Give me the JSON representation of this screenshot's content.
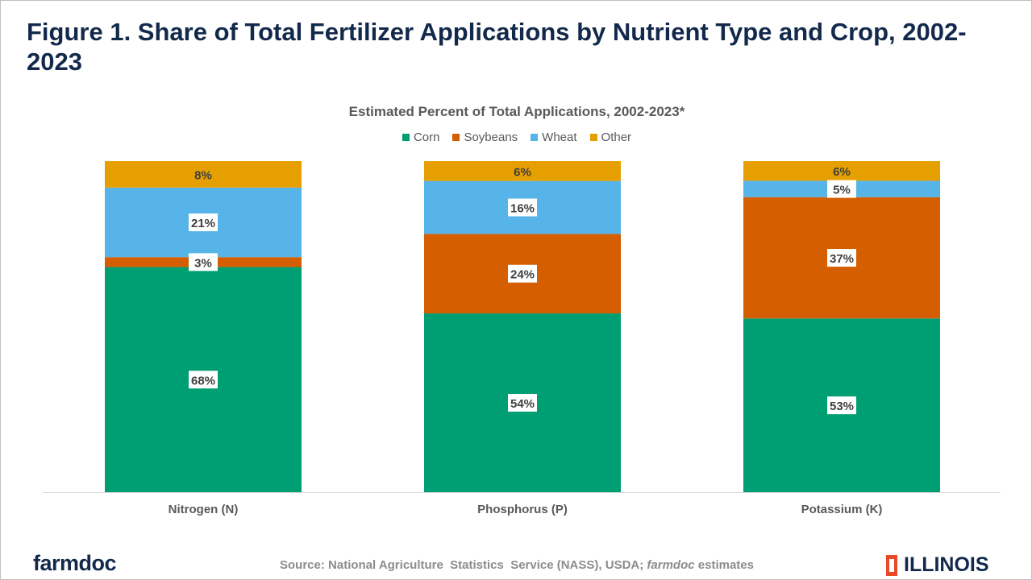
{
  "title": "Figure 1. Share of Total Fertilizer Applications by Nutrient Type and Crop, 2002-2023",
  "source": "Source: National Agriculture  Statistics  Service (NASS), USDA; farmdoc estimates",
  "logos": {
    "left": "farmdoc",
    "right": "ILLINOIS"
  },
  "chart_data": {
    "type": "bar",
    "stacked": true,
    "title": "Estimated Percent of Total Applications, 2002-2023*",
    "categories": [
      "Nitrogen (N)",
      "Phosphorus (P)",
      "Potassium (K)"
    ],
    "series": [
      {
        "name": "Corn",
        "color": "#009E73",
        "values": [
          68,
          54,
          53
        ]
      },
      {
        "name": "Soybeans",
        "color": "#D55E00",
        "values": [
          3,
          24,
          37
        ]
      },
      {
        "name": "Wheat",
        "color": "#56B4E9",
        "values": [
          21,
          16,
          5
        ]
      },
      {
        "name": "Other",
        "color": "#E69F00",
        "values": [
          8,
          6,
          6
        ]
      }
    ],
    "value_suffix": "%",
    "legend": "top",
    "xlabel": "",
    "ylabel": "",
    "ylim": [
      0,
      100
    ]
  }
}
